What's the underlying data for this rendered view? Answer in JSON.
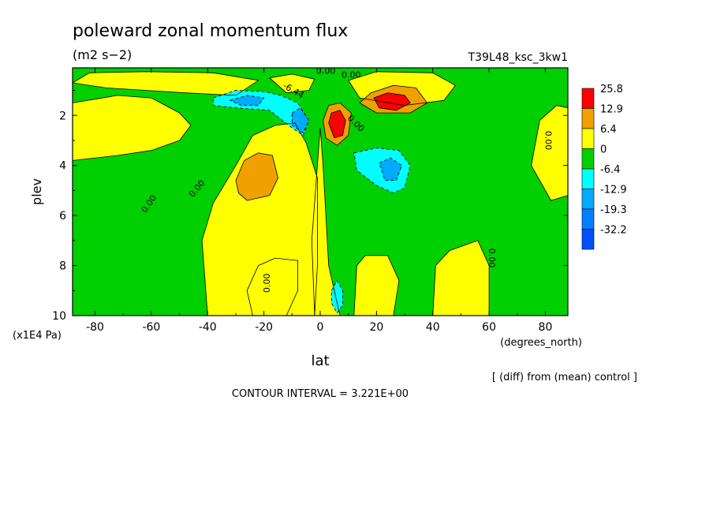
{
  "chart_data": {
    "type": "heatmap",
    "title": "poleward zonal momentum flux",
    "units": "(m2 s−2)",
    "experiment": "T39L48_ksc_3kw1",
    "xlabel": "lat",
    "xunits": "(degrees_north)",
    "ylabel": "plev",
    "yunits": "(x1E4 Pa)",
    "xlim": [
      -88,
      88
    ],
    "ylim": [
      10,
      0.1
    ],
    "x_ticks": [
      "-80",
      "-60",
      "-40",
      "-20",
      "0",
      "20",
      "40",
      "60",
      "80"
    ],
    "x_tick_values": [
      -80,
      -60,
      -40,
      -20,
      0,
      20,
      40,
      60,
      80
    ],
    "y_ticks": [
      "2",
      "4",
      "6",
      "8",
      "10"
    ],
    "y_tick_values": [
      2,
      4,
      6,
      8,
      10
    ],
    "note": "[ (diff) from (mean) control ]",
    "contour_interval": "CONTOUR INTERVAL = 3.221E+00",
    "contour_labels": [
      "0.00",
      "0.00",
      "0.00",
      "0.00",
      "0.00",
      "0.00",
      "0.00",
      "0.00",
      "-6.44"
    ],
    "legend": {
      "labels": [
        "25.8",
        "12.9",
        "6.4",
        "0",
        "-6.4",
        "-12.9",
        "-19.3",
        "-32.2"
      ],
      "colors": [
        "#ff0000",
        "#f0a000",
        "#ffff00",
        "#00d000",
        "#00ffff",
        "#00aaff",
        "#0080ff",
        "#0050ff"
      ]
    },
    "field_regions": [
      {
        "level": "positive",
        "shape": [
          [
            -88,
            1.5
          ],
          [
            -72,
            1.2
          ],
          [
            -60,
            1.3
          ],
          [
            -50,
            1.9
          ],
          [
            -46,
            2.4
          ],
          [
            -50,
            3.0
          ],
          [
            -60,
            3.4
          ],
          [
            -72,
            3.6
          ],
          [
            -88,
            3.8
          ]
        ]
      },
      {
        "level": "positive",
        "shape": [
          [
            -82,
            0.3
          ],
          [
            -62,
            0.25
          ],
          [
            -38,
            0.3
          ],
          [
            -22,
            0.6
          ],
          [
            -30,
            1.2
          ],
          [
            -48,
            1.1
          ],
          [
            -62,
            1.0
          ],
          [
            -76,
            0.9
          ],
          [
            -88,
            0.7
          ]
        ]
      },
      {
        "level": "positive",
        "shape": [
          [
            -40,
            10
          ],
          [
            -42,
            7
          ],
          [
            -38,
            5.5
          ],
          [
            -30,
            4
          ],
          [
            -24,
            2.8
          ],
          [
            -16,
            2.4
          ],
          [
            -9,
            2.3
          ],
          [
            -5,
            3.1
          ],
          [
            -1,
            4.5
          ],
          [
            -1,
            8
          ],
          [
            -2,
            10
          ]
        ]
      },
      {
        "level": "positive",
        "shape": [
          [
            -24,
            10
          ],
          [
            -26,
            9
          ],
          [
            -22,
            8
          ],
          [
            -16,
            7.7
          ],
          [
            -8,
            7.8
          ],
          [
            -8,
            9
          ],
          [
            -12,
            10
          ]
        ]
      },
      {
        "level": "positive",
        "shape": [
          [
            -2,
            10
          ],
          [
            -3,
            7
          ],
          [
            -1,
            4
          ],
          [
            0,
            2.5
          ],
          [
            1,
            4
          ],
          [
            3,
            8
          ],
          [
            7,
            10
          ]
        ]
      },
      {
        "level": "positive",
        "shape": [
          [
            12,
            10
          ],
          [
            13,
            8
          ],
          [
            16,
            7.6
          ],
          [
            24,
            7.6
          ],
          [
            28,
            8.6
          ],
          [
            26,
            10
          ]
        ]
      },
      {
        "level": "positive",
        "shape": [
          [
            40,
            10
          ],
          [
            41,
            8
          ],
          [
            46,
            7.4
          ],
          [
            56,
            7
          ],
          [
            60,
            8
          ],
          [
            60,
            10
          ]
        ]
      },
      {
        "level": "positive",
        "shape": [
          [
            75,
            4
          ],
          [
            78,
            2.2
          ],
          [
            84,
            1.6
          ],
          [
            88,
            1.7
          ],
          [
            88,
            5.2
          ],
          [
            82,
            5.4
          ]
        ]
      },
      {
        "level": "positive",
        "shape": [
          [
            10,
            0.6
          ],
          [
            20,
            0.25
          ],
          [
            40,
            0.3
          ],
          [
            48,
            0.8
          ],
          [
            44,
            1.4
          ],
          [
            30,
            1.6
          ],
          [
            14,
            1.3
          ]
        ]
      },
      {
        "level": "positive",
        "shape": [
          [
            -18,
            0.5
          ],
          [
            -10,
            0.35
          ],
          [
            -2,
            0.55
          ],
          [
            -4,
            1.0
          ],
          [
            -12,
            1.1
          ]
        ]
      },
      {
        "level": "warm",
        "shape": [
          [
            -30,
            4.6
          ],
          [
            -27,
            3.8
          ],
          [
            -22,
            3.5
          ],
          [
            -17,
            3.6
          ],
          [
            -15,
            4.5
          ],
          [
            -18,
            5.2
          ],
          [
            -26,
            5.4
          ],
          [
            -29,
            5.1
          ]
        ]
      },
      {
        "level": "warm",
        "shape": [
          [
            14,
            1.5
          ],
          [
            18,
            1.1
          ],
          [
            26,
            0.8
          ],
          [
            34,
            0.9
          ],
          [
            38,
            1.5
          ],
          [
            32,
            1.9
          ],
          [
            20,
            1.9
          ]
        ]
      },
      {
        "level": "warm",
        "shape": [
          [
            1,
            2.2
          ],
          [
            3,
            1.6
          ],
          [
            7,
            1.5
          ],
          [
            11,
            1.9
          ],
          [
            10,
            2.8
          ],
          [
            6,
            3.2
          ],
          [
            2,
            2.9
          ]
        ]
      },
      {
        "level": "hot",
        "shape": [
          [
            3,
            2.3
          ],
          [
            4,
            1.9
          ],
          [
            7,
            1.8
          ],
          [
            9,
            2.2
          ],
          [
            8,
            2.8
          ],
          [
            5,
            2.9
          ]
        ]
      },
      {
        "level": "hot",
        "shape": [
          [
            19,
            1.3
          ],
          [
            24,
            1.1
          ],
          [
            30,
            1.2
          ],
          [
            32,
            1.5
          ],
          [
            27,
            1.8
          ],
          [
            21,
            1.7
          ]
        ]
      },
      {
        "level": "cool",
        "shape": [
          [
            -38,
            1.3
          ],
          [
            -30,
            1.0
          ],
          [
            -20,
            1.05
          ],
          [
            -14,
            1.2
          ],
          [
            -8,
            1.5
          ],
          [
            -4,
            2.2
          ],
          [
            -6,
            2.8
          ],
          [
            -10,
            2.5
          ],
          [
            -18,
            1.8
          ],
          [
            -30,
            1.7
          ],
          [
            -38,
            1.6
          ]
        ]
      },
      {
        "level": "cool",
        "shape": [
          [
            12,
            3.5
          ],
          [
            20,
            3.3
          ],
          [
            28,
            3.4
          ],
          [
            32,
            4.0
          ],
          [
            30,
            4.9
          ],
          [
            26,
            5.1
          ],
          [
            20,
            4.8
          ],
          [
            13,
            4.2
          ]
        ]
      },
      {
        "level": "cool",
        "shape": [
          [
            4,
            9.0
          ],
          [
            6,
            8.6
          ],
          [
            8,
            9.0
          ],
          [
            8,
            9.6
          ],
          [
            6,
            9.9
          ],
          [
            4,
            9.5
          ]
        ]
      },
      {
        "level": "cold",
        "shape": [
          [
            -32,
            1.4
          ],
          [
            -26,
            1.2
          ],
          [
            -20,
            1.3
          ],
          [
            -22,
            1.6
          ],
          [
            -28,
            1.6
          ]
        ]
      },
      {
        "level": "cold",
        "shape": [
          [
            -10,
            1.9
          ],
          [
            -7,
            1.7
          ],
          [
            -4,
            2.2
          ],
          [
            -6,
            2.7
          ],
          [
            -10,
            2.4
          ]
        ]
      },
      {
        "level": "cold",
        "shape": [
          [
            21,
            3.9
          ],
          [
            25,
            3.7
          ],
          [
            29,
            4.0
          ],
          [
            27,
            4.6
          ],
          [
            23,
            4.6
          ]
        ]
      }
    ]
  }
}
